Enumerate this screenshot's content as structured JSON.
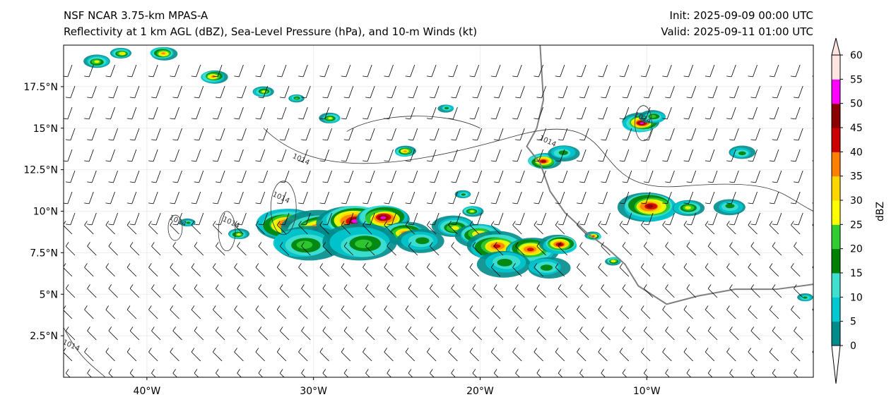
{
  "header": {
    "title_line1": "NSF NCAR 3.75-km MPAS-A",
    "title_line2": "Reflectivity at 1 km AGL (dBZ), Sea-Level Pressure (hPa), and 10-m Winds (kt)",
    "init": "Init: 2025-09-09 00:00 UTC",
    "valid": "Valid: 2025-09-11 01:00 UTC"
  },
  "map": {
    "lon_range": [
      -45,
      0
    ],
    "lat_range": [
      0,
      20
    ],
    "lat_ticks": [
      {
        "v": 17.5,
        "label": "17.5°N"
      },
      {
        "v": 15,
        "label": "15°N"
      },
      {
        "v": 12.5,
        "label": "12.5°N"
      },
      {
        "v": 10,
        "label": "10°N"
      },
      {
        "v": 7.5,
        "label": "7.5°N"
      },
      {
        "v": 5,
        "label": "5°N"
      },
      {
        "v": 2.5,
        "label": "2.5°N"
      }
    ],
    "lon_ticks": [
      {
        "v": -40,
        "label": "40°W"
      },
      {
        "v": -30,
        "label": "30°W"
      },
      {
        "v": -20,
        "label": "20°W"
      },
      {
        "v": -10,
        "label": "10°W"
      }
    ],
    "coastline": [
      [
        -16.4,
        20
      ],
      [
        -16.2,
        16.7
      ],
      [
        -16.6,
        15.0
      ],
      [
        -17.2,
        13.9
      ],
      [
        -16.4,
        12.9
      ],
      [
        -15.8,
        11.2
      ],
      [
        -14.9,
        9.9
      ],
      [
        -13.6,
        8.7
      ],
      [
        -12.4,
        7.8
      ],
      [
        -11.3,
        6.8
      ],
      [
        -10.5,
        5.5
      ],
      [
        -8.8,
        4.4
      ],
      [
        -6.9,
        4.9
      ],
      [
        -4.7,
        5.3
      ],
      [
        -2.2,
        5.3
      ],
      [
        0,
        5.6
      ]
    ],
    "contour_labels": [
      {
        "text": "1014",
        "lon": -30.8,
        "lat": 13.0
      },
      {
        "text": "1014",
        "lon": -16.0,
        "lat": 14.1
      },
      {
        "text": "1014",
        "lon": -10.3,
        "lat": 15.5
      },
      {
        "text": "1014",
        "lon": -38.2,
        "lat": 9.3
      },
      {
        "text": "1014",
        "lon": -35.0,
        "lat": 9.2
      },
      {
        "text": "1014",
        "lon": -32.0,
        "lat": 10.7
      },
      {
        "text": "1014",
        "lon": -44.6,
        "lat": 1.8
      }
    ],
    "storms": [
      [
        -31.5,
        9.2,
        1.2,
        45
      ],
      [
        -29.5,
        8.8,
        1.4,
        50
      ],
      [
        -27.5,
        9.4,
        1.3,
        50
      ],
      [
        -25.8,
        9.6,
        1.0,
        50
      ],
      [
        -24.5,
        8.7,
        0.9,
        35
      ],
      [
        -30.5,
        8.0,
        1.3,
        20
      ],
      [
        -27.0,
        8.0,
        1.4,
        20
      ],
      [
        -23.5,
        8.2,
        0.9,
        15
      ],
      [
        -21.5,
        9.0,
        0.8,
        25
      ],
      [
        -20.0,
        8.6,
        0.9,
        30
      ],
      [
        -19.0,
        7.9,
        1.1,
        40
      ],
      [
        -17.0,
        7.7,
        1.0,
        40
      ],
      [
        -15.2,
        8.0,
        0.7,
        45
      ],
      [
        -18.5,
        6.9,
        1.0,
        15
      ],
      [
        -16.0,
        6.6,
        0.8,
        15
      ],
      [
        -10.3,
        15.3,
        0.7,
        50
      ],
      [
        -9.6,
        15.7,
        0.5,
        20
      ],
      [
        -9.8,
        10.3,
        1.1,
        45
      ],
      [
        -7.5,
        10.2,
        0.6,
        25
      ],
      [
        -5.0,
        10.3,
        0.6,
        15
      ],
      [
        -16.2,
        13.0,
        0.6,
        45
      ],
      [
        -15.0,
        13.5,
        0.6,
        15
      ],
      [
        -4.3,
        13.5,
        0.5,
        15
      ],
      [
        -13.2,
        8.5,
        0.3,
        40
      ],
      [
        -39.0,
        19.5,
        0.5,
        35
      ],
      [
        -41.5,
        19.5,
        0.4,
        30
      ],
      [
        -43.0,
        19.0,
        0.5,
        25
      ],
      [
        -36.0,
        18.1,
        0.5,
        35
      ],
      [
        -33.0,
        17.2,
        0.4,
        25
      ],
      [
        -29.0,
        15.6,
        0.4,
        25
      ],
      [
        -31.0,
        16.8,
        0.3,
        20
      ],
      [
        -24.5,
        13.6,
        0.4,
        35
      ],
      [
        -37.5,
        9.3,
        0.3,
        15
      ],
      [
        -34.5,
        8.6,
        0.4,
        25
      ],
      [
        -20.5,
        10.0,
        0.4,
        25
      ],
      [
        -21.0,
        11.0,
        0.3,
        15
      ],
      [
        -12.0,
        7.0,
        0.3,
        30
      ],
      [
        -0.5,
        4.8,
        0.3,
        15
      ],
      [
        -22.0,
        16.2,
        0.3,
        15
      ]
    ]
  },
  "colorbar": {
    "label": "dBZ",
    "ticks": [
      "0",
      "5",
      "10",
      "15",
      "20",
      "25",
      "30",
      "35",
      "40",
      "45",
      "50",
      "55",
      "60"
    ],
    "colors": [
      "#008b8b",
      "#00c8d0",
      "#40e0d0",
      "#008000",
      "#32cd32",
      "#ffff00",
      "#ffd700",
      "#ff8000",
      "#cc0000",
      "#8b0000",
      "#ff00ff",
      "#ffe4e1"
    ]
  }
}
